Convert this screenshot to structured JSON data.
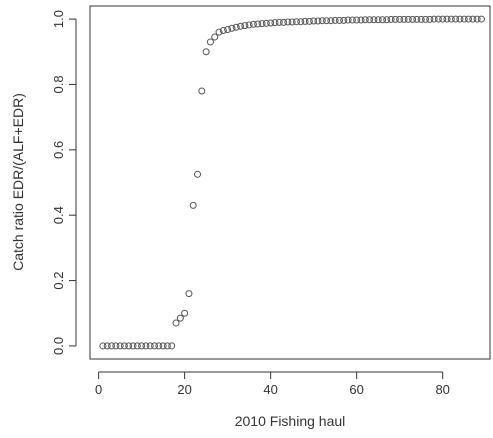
{
  "chart_data": {
    "type": "scatter",
    "title": "",
    "xlabel": "2010 Fishing haul",
    "ylabel": "Catch ratio EDR/(ALF+EDR)",
    "xlim": [
      -2,
      91
    ],
    "ylim": [
      -0.04,
      1.04
    ],
    "xticks": [
      0,
      20,
      40,
      60,
      80
    ],
    "yticks": [
      0.0,
      0.2,
      0.4,
      0.6,
      0.8,
      1.0
    ],
    "ytick_labels": [
      "0.0",
      "0.2",
      "0.4",
      "0.6",
      "0.8",
      "1.0"
    ],
    "grid": false,
    "legend": "none",
    "marker": "open-circle",
    "point_color": "#555555",
    "x": [
      1,
      2,
      3,
      4,
      5,
      6,
      7,
      8,
      9,
      10,
      11,
      12,
      13,
      14,
      15,
      16,
      17,
      18,
      19,
      20,
      21,
      22,
      23,
      24,
      25,
      26,
      27,
      28,
      29,
      30,
      31,
      32,
      33,
      34,
      35,
      36,
      37,
      38,
      39,
      40,
      41,
      42,
      43,
      44,
      45,
      46,
      47,
      48,
      49,
      50,
      51,
      52,
      53,
      54,
      55,
      56,
      57,
      58,
      59,
      60,
      61,
      62,
      63,
      64,
      65,
      66,
      67,
      68,
      69,
      70,
      71,
      72,
      73,
      74,
      75,
      76,
      77,
      78,
      79,
      80,
      81,
      82,
      83,
      84,
      85,
      86,
      87,
      88,
      89
    ],
    "y": [
      0,
      0,
      0,
      0,
      0,
      0,
      0,
      0,
      0,
      0,
      0,
      0,
      0,
      0,
      0,
      0,
      0,
      0.07,
      0.085,
      0.1,
      0.16,
      0.43,
      0.525,
      0.78,
      0.9,
      0.93,
      0.945,
      0.96,
      0.965,
      0.968,
      0.972,
      0.975,
      0.978,
      0.98,
      0.982,
      0.984,
      0.985,
      0.986,
      0.987,
      0.988,
      0.989,
      0.99,
      0.99,
      0.991,
      0.991,
      0.992,
      0.992,
      0.993,
      0.993,
      0.994,
      0.994,
      0.995,
      0.995,
      0.995,
      0.996,
      0.996,
      0.996,
      0.997,
      0.997,
      0.997,
      0.997,
      0.998,
      0.998,
      0.998,
      0.998,
      0.998,
      0.998,
      0.999,
      0.999,
      0.999,
      0.999,
      0.999,
      0.999,
      0.999,
      0.999,
      0.999,
      0.999,
      1,
      1,
      1,
      1,
      1,
      1,
      1,
      1,
      1,
      1,
      1,
      1
    ]
  }
}
